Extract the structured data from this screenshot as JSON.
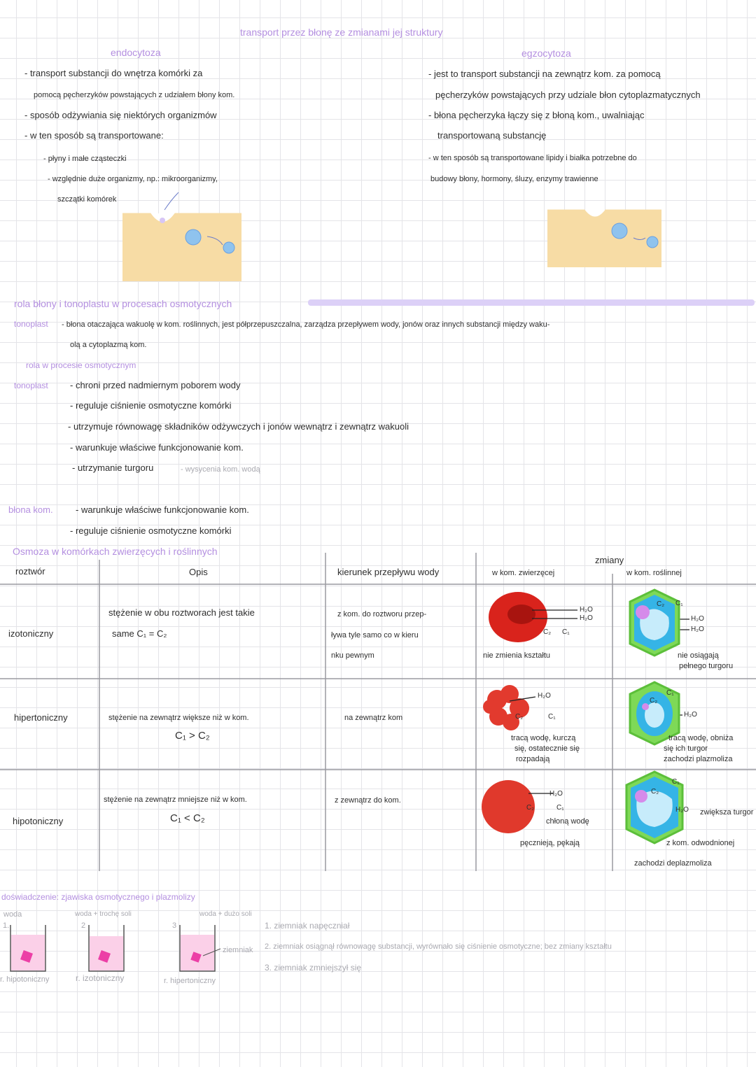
{
  "title": "transport przez błonę ze zmianami jej struktury",
  "endocytosis": {
    "heading": "endocytoza",
    "lines": [
      "- transport substancji do wnętrza komórki za",
      "pomocą pęcherzyków powstających z udziałem błony kom.",
      "- sposób odżywiania się niektórych organizmów",
      "- w ten sposób są transportowane:",
      "- płyny i małe cząsteczki",
      "- względnie duże organizmy, np.: mikroorganizmy,",
      "szczątki komórek"
    ]
  },
  "exocytosis": {
    "heading": "egzocytoza",
    "lines": [
      "- jest to transport substancji na zewnątrz kom. za pomocą",
      "pęcherzyków powstających przy udziale błon cytoplazmatycznych",
      "- błona pęcherzyka łączy się z błoną kom., uwalniając",
      "transportowaną substancję",
      "- w ten sposób są transportowane lipidy i białka potrzebne do",
      "budowy błony, hormony, śluzy, enzymy trawienne"
    ]
  },
  "role_section": {
    "heading": "rola błony i tonoplastu w procesach osmotycznych",
    "tonoplast_term": "tonoplast",
    "tonoplast_definition": [
      "- błona otaczająca wakuolę w kom. roślinnych, jest półprzepuszczalna, zarządza przepływem wody, jonów oraz innych substancji między waku-",
      "olą a cytoplazmą kom."
    ],
    "subheading": "rola w procesie osmotycznym",
    "tonoplast_roles": [
      "- chroni przed nadmiernym poborem wody",
      "- reguluje ciśnienie osmotyczne komórki",
      "- utrzymuje równowagę składników odżywczych i jonów wewnątrz i zewnątrz wakuoli",
      "- warunkuje właściwe funkcjonowanie kom.",
      "- utrzymanie turgoru"
    ],
    "turgor_note": "- wysycenia kom. wodą",
    "membrane_term": "błona kom.",
    "membrane_roles": [
      "- warunkuje właściwe funkcjonowanie kom.",
      "- reguluje ciśnienie osmotyczne komórki"
    ]
  },
  "osmosis": {
    "heading": "Osmoza w komórkach zwierzęcych i roślinnych",
    "headers": {
      "solution": "roztwór",
      "description": "Opis",
      "direction": "kierunek przepływu wody",
      "changes": "zmiany",
      "animal": "w kom. zwierzęcej",
      "plant": "w kom. roślinnej"
    },
    "rows": [
      {
        "solution": "izotoniczny",
        "description": [
          "stężenie w obu roztworach jest takie",
          "same    C₁ = C₂"
        ],
        "direction": [
          "z kom. do roztworu przep-",
          "ływa tyle samo co w kieru",
          "nku pewnym"
        ],
        "animal": [
          "nie zmienia kształtu"
        ],
        "plant": [
          "nie osiągają",
          "pełnego turgoru"
        ],
        "animal_labels": [
          "H₂O",
          "H₂O",
          "C₂",
          "C₁"
        ],
        "plant_labels": [
          "C₂",
          "C₁",
          "H₂O",
          "H₂O"
        ]
      },
      {
        "solution": "hipertoniczny",
        "description": [
          "stężenie na zewnątrz większe niż w kom.",
          "C₁ > C₂"
        ],
        "direction": [
          "na zewnątrz kom"
        ],
        "animal": [
          "tracą wodę, kurczą",
          "się, ostatecznie się",
          "rozpadają"
        ],
        "plant": [
          "tracą wodę, obniża",
          "się ich turgor",
          "zachodzi plazmoliza"
        ],
        "animal_labels": [
          "H₂O",
          "C₂",
          "C₁"
        ],
        "plant_labels": [
          "C₁",
          "C₂",
          "H₂O"
        ]
      },
      {
        "solution": "hipotoniczny",
        "description": [
          "stężenie na zewnątrz mniejsze niż w kom.",
          "C₁ < C₂"
        ],
        "direction": [
          "z zewnątrz do kom."
        ],
        "animal": [
          "chłoną wodę",
          "pęcznieją, pękają"
        ],
        "plant": [
          "zwiększa turgor",
          "z kom. odwodnionej",
          "zachodzi deplazmoliza"
        ],
        "animal_labels": [
          "H₂O",
          "C₂",
          "C₁"
        ],
        "plant_labels": [
          "C₁",
          "C₂",
          "H₂O"
        ]
      }
    ]
  },
  "experiment": {
    "heading": "doświadczenie: zjawiska osmotycznego i plazmolizy",
    "beakers": [
      {
        "number": "1.",
        "label": "woda",
        "solution": "r. hipotoniczny"
      },
      {
        "number": "2",
        "label": "woda + trochę soli",
        "solution": "r. izotoniczny"
      },
      {
        "number": "3",
        "label": "woda + dużo soli",
        "solution": "r. hipertoniczny"
      }
    ],
    "potato_label": "ziemniak",
    "results": [
      "1. ziemniak napęczniał",
      "2. ziemniak osiągnął równowagę substancji, wyrównało się ciśnienie osmotyczne; bez zmiany kształtu",
      "3. ziemniak zmniejszył się"
    ]
  }
}
